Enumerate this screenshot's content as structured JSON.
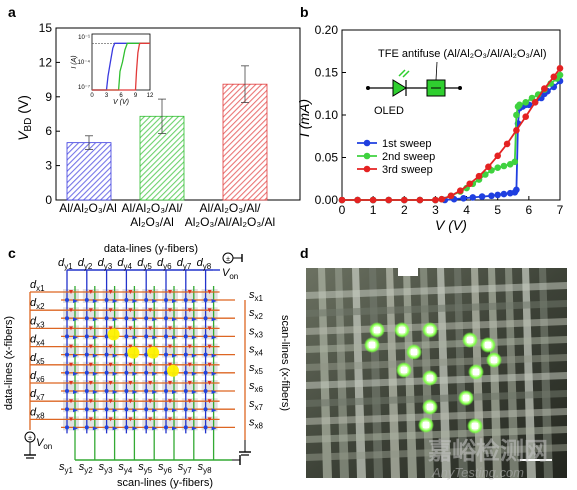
{
  "panels": {
    "a": {
      "label": "a",
      "ylabel": "V_BD (V)",
      "ylabel_main": "V",
      "ylabel_sub": "BD",
      "ylabel_unit": "(V)",
      "yticks": [
        "0",
        "3",
        "6",
        "9",
        "12",
        "15"
      ],
      "xcats": [
        [
          "Al/Al₂O₃/Al"
        ],
        [
          "Al/Al₂O₃/Al/",
          "Al₂O₃/Al"
        ],
        [
          "Al/Al₂O₃/Al/",
          "Al₂O₃/Al/Al₂O₃/Al"
        ]
      ],
      "inset": {
        "ylabel": "I (A)",
        "xlabel": "V (V)",
        "yticks": [
          "10⁻¹",
          "10⁻⁴",
          "10⁻⁷"
        ],
        "xticks": [
          "0",
          "3",
          "6",
          "9",
          "12"
        ]
      }
    },
    "b": {
      "label": "b",
      "ylabel": "I (mA)",
      "xlabel": "V (V)",
      "yticks": [
        "0.00",
        "0.05",
        "0.10",
        "0.15",
        "0.20"
      ],
      "xticks": [
        "0",
        "1",
        "2",
        "3",
        "4",
        "5",
        "6",
        "7"
      ],
      "legend": [
        "1st sweep",
        "2nd sweep",
        "3rd sweep"
      ],
      "device_label": "TFE antifuse (Al/Al₂O₃/Al/Al₂O₃/Al)",
      "oled_label": "OLED"
    },
    "c": {
      "label": "c",
      "top_label": "data-lines (y-fibers)",
      "bottom_label": "scan-lines (y-fibers)",
      "left_label": "data-lines (x-fibers)",
      "right_label": "scan-lines (x-fibers)",
      "von_label": "V",
      "von_sub": "on",
      "top_nodes": [
        "d",
        "d",
        "d",
        "d",
        "d",
        "d",
        "d",
        "d"
      ],
      "top_subs": [
        "y1",
        "y2",
        "y3",
        "y4",
        "y5",
        "y6",
        "y7",
        "y8"
      ],
      "left_subs": [
        "x1",
        "x2",
        "x3",
        "x4",
        "x5",
        "x6",
        "x7",
        "x8"
      ],
      "right_subs": [
        "x1",
        "x2",
        "x3",
        "x4",
        "x5",
        "x6",
        "x7",
        "x8"
      ],
      "bottom_subs": [
        "y1",
        "y2",
        "y3",
        "y4",
        "y5",
        "y6",
        "y7",
        "y8"
      ]
    },
    "d": {
      "label": "d",
      "watermark": "嘉峪检测网",
      "watermark_url": "AnyTesting.com"
    }
  },
  "chart_data": [
    {
      "type": "bar",
      "categories": [
        "Al/Al₂O₃/Al",
        "Al/Al₂O₃/Al/Al₂O₃/Al",
        "Al/Al₂O₃/Al/Al₂O₃/Al/Al₂O₃/Al"
      ],
      "values": [
        5.0,
        7.3,
        10.1
      ],
      "errors": [
        0.6,
        1.5,
        1.6
      ],
      "ylabel": "V_BD (V)",
      "ylim": [
        0,
        15
      ],
      "colors": [
        "#3a3adf",
        "#2fbf2f",
        "#e23a3a"
      ],
      "inset": {
        "type": "line",
        "xlabel": "V (V)",
        "ylabel": "I (A)",
        "xlim": [
          0,
          12
        ],
        "yscale": "log",
        "ylim": [
          1e-07,
          0.1
        ],
        "series": [
          {
            "color": "#3a3adf",
            "x": [
              0,
              3.0,
              3.3,
              3.8,
              4.3,
              4.7,
              5.0,
              12
            ],
            "y": [
              1e-07,
              1e-07,
              3e-06,
              0.0001,
              0.003,
              0.01,
              0.01,
              0.01
            ]
          },
          {
            "color": "#2fbf2f",
            "x": [
              0,
              5.5,
              5.8,
              6.3,
              6.8,
              7.3,
              12
            ],
            "y": [
              1e-07,
              1e-07,
              1e-05,
              0.0001,
              0.002,
              0.01,
              0.01
            ]
          },
          {
            "color": "#e23a3a",
            "x": [
              0,
              9.0,
              9.2,
              9.5,
              9.8,
              10.0,
              12
            ],
            "y": [
              1e-07,
              1e-07,
              1e-05,
              0.001,
              0.008,
              0.01,
              0.01
            ]
          }
        ]
      }
    },
    {
      "type": "line",
      "xlabel": "V (V)",
      "ylabel": "I (mA)",
      "xlim": [
        0,
        7
      ],
      "ylim": [
        0,
        0.2
      ],
      "legend_position": "middle-left",
      "series": [
        {
          "name": "1st sweep",
          "color": "#1f3fe0",
          "x": [
            0,
            0.5,
            1,
            1.5,
            2,
            2.5,
            3,
            3.3,
            3.6,
            3.9,
            4.2,
            4.5,
            4.8,
            5.0,
            5.2,
            5.4,
            5.55,
            5.6,
            5.65,
            5.7,
            5.8,
            5.9,
            6.0,
            6.2,
            6.4,
            6.5,
            6.6,
            6.8,
            7.0
          ],
          "y": [
            0,
            0,
            0,
            0,
            0,
            0,
            0,
            0,
            0.001,
            0.002,
            0.003,
            0.004,
            0.005,
            0.006,
            0.007,
            0.008,
            0.009,
            0.012,
            0.09,
            0.108,
            0.11,
            0.112,
            0.112,
            0.115,
            0.12,
            0.125,
            0.128,
            0.133,
            0.14
          ]
        },
        {
          "name": "2nd sweep",
          "color": "#3fd23f",
          "x": [
            0,
            0.5,
            1,
            1.5,
            2,
            2.5,
            3,
            3.2,
            3.5,
            3.8,
            4.0,
            4.2,
            4.4,
            4.6,
            4.8,
            5.0,
            5.2,
            5.4,
            5.55,
            5.6,
            5.65,
            5.7,
            5.9,
            6.1,
            6.3,
            6.5,
            6.7,
            6.9,
            7.0
          ],
          "y": [
            0,
            0,
            0,
            0,
            0,
            0,
            0,
            0.001,
            0.005,
            0.01,
            0.014,
            0.019,
            0.024,
            0.03,
            0.035,
            0.038,
            0.04,
            0.042,
            0.045,
            0.1,
            0.11,
            0.112,
            0.115,
            0.12,
            0.124,
            0.13,
            0.137,
            0.143,
            0.147
          ]
        },
        {
          "name": "3rd sweep",
          "color": "#e42222",
          "x": [
            0,
            0.5,
            1,
            1.5,
            2,
            2.5,
            3,
            3.2,
            3.5,
            3.8,
            4.1,
            4.4,
            4.7,
            5.0,
            5.3,
            5.6,
            5.9,
            6.2,
            6.5,
            6.8,
            7.0
          ],
          "y": [
            0,
            0,
            0,
            0,
            0,
            0,
            0,
            0.001,
            0.005,
            0.011,
            0.019,
            0.028,
            0.039,
            0.052,
            0.066,
            0.082,
            0.098,
            0.115,
            0.131,
            0.145,
            0.155
          ]
        }
      ]
    }
  ]
}
